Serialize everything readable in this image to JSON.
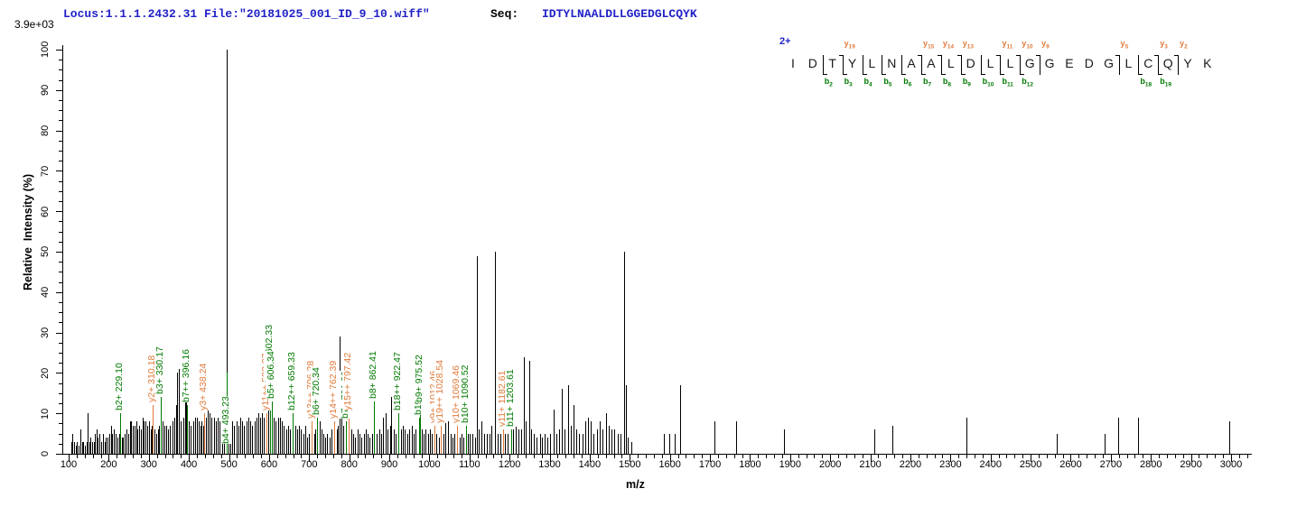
{
  "header": {
    "locus_file": "Locus:1.1.1.2432.31 File:\"20181025_001_ID_9_10.wiff\"",
    "seq_label": "Seq:",
    "sequence": "IDTYLNAALDLLGGEDGLCQYK",
    "intensity_scale": "3.9e+03"
  },
  "precursor_charge": "2+",
  "colors": {
    "header_blue": "#2121c8",
    "b_ion_green": "#007a00",
    "y_ion_orange": "#e07b3c",
    "peak_black": "#000000"
  },
  "axes": {
    "x_label": "m/z",
    "y_label": "Relative  Intensity (%)",
    "x_min": 100,
    "x_max": 3000,
    "x_major_step": 100,
    "x_minor_step": 20,
    "y_min": 0,
    "y_max": 100,
    "y_major_step": 10,
    "y_minor_step": 2.5
  },
  "fragment_map": {
    "residues": [
      "I",
      "D",
      "T",
      "Y",
      "L",
      "N",
      "A",
      "A",
      "L",
      "D",
      "L",
      "L",
      "G",
      "G",
      "E",
      "D",
      "G",
      "L",
      "C",
      "Q",
      "Y",
      "K"
    ],
    "marks": [
      {
        "after": 2,
        "b": "b2"
      },
      {
        "after": 3,
        "b": "b3",
        "y": "y19"
      },
      {
        "after": 4,
        "b": "b4"
      },
      {
        "after": 5,
        "b": "b5"
      },
      {
        "after": 6,
        "b": "b6"
      },
      {
        "after": 7,
        "b": "b7",
        "y": "y15"
      },
      {
        "after": 8,
        "b": "b8",
        "y": "y14"
      },
      {
        "after": 9,
        "b": "b9",
        "y": "y13"
      },
      {
        "after": 10,
        "b": "b10"
      },
      {
        "after": 11,
        "b": "b11",
        "y": "y11"
      },
      {
        "after": 12,
        "b": "b12",
        "y": "y10"
      },
      {
        "after": 13,
        "y": "y9"
      },
      {
        "after": 17,
        "y": "y5"
      },
      {
        "after": 18,
        "b": "b18"
      },
      {
        "after": 19,
        "b": "b19",
        "y": "y3"
      },
      {
        "after": 20,
        "y": "y2"
      }
    ]
  },
  "chart_data": {
    "type": "bar",
    "title": "MS/MS fragmentation spectrum",
    "xlabel": "m/z",
    "ylabel": "Relative Intensity (%)",
    "xlim": [
      100,
      3000
    ],
    "ylim": [
      0,
      100
    ],
    "grid": false,
    "base_peak_intensity": "3.9e+03",
    "labeled_peaks": [
      {
        "label": "b2+ 229.10",
        "ion": "b",
        "mz": 229.1,
        "intensity": 10
      },
      {
        "label": "y2+ 310.18",
        "ion": "y",
        "mz": 310.18,
        "intensity": 12
      },
      {
        "label": "b3+ 330.17",
        "ion": "b",
        "mz": 330.17,
        "intensity": 14
      },
      {
        "label": "b7++ 396.16",
        "ion": "b",
        "mz": 396.16,
        "intensity": 12
      },
      {
        "label": "y3+ 438.24",
        "ion": "y",
        "mz": 438.24,
        "intensity": 10
      },
      {
        "label": "b4+ 493.23",
        "ion": "b",
        "mz": 493.23,
        "intensity": 20,
        "label_bottom_y": 492
      },
      {
        "label": "y11++ 592.27",
        "ion": "y",
        "mz": 592.27,
        "intensity": 10
      },
      {
        "label": "b11++ 602.33",
        "ion": "b",
        "mz": 602.33,
        "intensity": 17
      },
      {
        "label": "b5+ 606.34",
        "ion": "b",
        "mz": 606.34,
        "intensity": 13
      },
      {
        "label": "b12++ 659.33",
        "ion": "b",
        "mz": 659.33,
        "intensity": 10
      },
      {
        "label": "y13++ 706.28",
        "ion": "y",
        "mz": 706.28,
        "intensity": 8
      },
      {
        "label": "b6+ 720.34",
        "ion": "b",
        "mz": 720.34,
        "intensity": 9
      },
      {
        "label": "y14++ 762.39",
        "ion": "y",
        "mz": 762.39,
        "intensity": 8
      },
      {
        "label": "b7+ 791.39",
        "ion": "b",
        "mz": 791.39,
        "intensity": 8
      },
      {
        "label": "y15++ 797.42",
        "ion": "y",
        "mz": 797.42,
        "intensity": 10
      },
      {
        "label": "b8+ 862.41",
        "ion": "b",
        "mz": 862.41,
        "intensity": 13
      },
      {
        "label": "b18++ 922.47",
        "ion": "b",
        "mz": 922.47,
        "intensity": 10
      },
      {
        "label": "b19++ 974.45",
        "ion": "b",
        "mz": 974.45,
        "intensity": 9
      },
      {
        "label": "b9+ 975.52",
        "ion": "b",
        "mz": 975.52,
        "intensity": 12
      },
      {
        "label": "y9+ 1012.46",
        "ion": "y",
        "mz": 1012.46,
        "intensity": 7
      },
      {
        "label": "y19++ 1028.54",
        "ion": "y",
        "mz": 1028.54,
        "intensity": 7
      },
      {
        "label": "y10+ 1069.46",
        "ion": "y",
        "mz": 1069.46,
        "intensity": 7
      },
      {
        "label": "b10+ 1090.52",
        "ion": "b",
        "mz": 1090.52,
        "intensity": 7
      },
      {
        "label": "y11+ 1182.61",
        "ion": "y",
        "mz": 1182.61,
        "intensity": 6
      },
      {
        "label": "b11+ 1203.61",
        "ion": "b",
        "mz": 1203.61,
        "intensity": 6
      }
    ],
    "unlabeled_peaks": [
      [
        107,
        3
      ],
      [
        110,
        5
      ],
      [
        114,
        3
      ],
      [
        118,
        2
      ],
      [
        121,
        3
      ],
      [
        125,
        2
      ],
      [
        129,
        6
      ],
      [
        133,
        3
      ],
      [
        136,
        3
      ],
      [
        141,
        2
      ],
      [
        144,
        3
      ],
      [
        147,
        10
      ],
      [
        151,
        3
      ],
      [
        155,
        4
      ],
      [
        158,
        3
      ],
      [
        162,
        3
      ],
      [
        166,
        5
      ],
      [
        169,
        6
      ],
      [
        173,
        4
      ],
      [
        176,
        5
      ],
      [
        181,
        3
      ],
      [
        185,
        5
      ],
      [
        189,
        3
      ],
      [
        193,
        4
      ],
      [
        197,
        4
      ],
      [
        201,
        5
      ],
      [
        205,
        7
      ],
      [
        209,
        5
      ],
      [
        213,
        6
      ],
      [
        217,
        5
      ],
      [
        221,
        4
      ],
      [
        225,
        5
      ],
      [
        232,
        4
      ],
      [
        236,
        4
      ],
      [
        240,
        5
      ],
      [
        244,
        6
      ],
      [
        248,
        5
      ],
      [
        252,
        8
      ],
      [
        256,
        8
      ],
      [
        260,
        7
      ],
      [
        264,
        7
      ],
      [
        268,
        8
      ],
      [
        272,
        6
      ],
      [
        276,
        7
      ],
      [
        280,
        6
      ],
      [
        284,
        9
      ],
      [
        288,
        8
      ],
      [
        292,
        8
      ],
      [
        296,
        7
      ],
      [
        300,
        8
      ],
      [
        304,
        6
      ],
      [
        308,
        7
      ],
      [
        314,
        6
      ],
      [
        318,
        5
      ],
      [
        322,
        6
      ],
      [
        326,
        7
      ],
      [
        334,
        8
      ],
      [
        338,
        7
      ],
      [
        343,
        7
      ],
      [
        348,
        6
      ],
      [
        353,
        7
      ],
      [
        358,
        8
      ],
      [
        363,
        9
      ],
      [
        368,
        12
      ],
      [
        371,
        20
      ],
      [
        375,
        21
      ],
      [
        380,
        8
      ],
      [
        385,
        9
      ],
      [
        390,
        21
      ],
      [
        393,
        14
      ],
      [
        400,
        8
      ],
      [
        405,
        7
      ],
      [
        410,
        8
      ],
      [
        415,
        9
      ],
      [
        420,
        9
      ],
      [
        424,
        8
      ],
      [
        428,
        7
      ],
      [
        432,
        8
      ],
      [
        436,
        7
      ],
      [
        443,
        9
      ],
      [
        447,
        12
      ],
      [
        452,
        10
      ],
      [
        457,
        9
      ],
      [
        462,
        9
      ],
      [
        467,
        8
      ],
      [
        472,
        9
      ],
      [
        477,
        8
      ],
      [
        482,
        9
      ],
      [
        487,
        9
      ],
      [
        494.5,
        100
      ],
      [
        498,
        10
      ],
      [
        503,
        9
      ],
      [
        508,
        8
      ],
      [
        513,
        7
      ],
      [
        518,
        8
      ],
      [
        523,
        7
      ],
      [
        528,
        9
      ],
      [
        533,
        8
      ],
      [
        538,
        7
      ],
      [
        543,
        8
      ],
      [
        548,
        9
      ],
      [
        553,
        8
      ],
      [
        558,
        7
      ],
      [
        563,
        8
      ],
      [
        568,
        9
      ],
      [
        572,
        10
      ],
      [
        577,
        9
      ],
      [
        582,
        10
      ],
      [
        587,
        9
      ],
      [
        597,
        12
      ],
      [
        612,
        9
      ],
      [
        617,
        8
      ],
      [
        622,
        9
      ],
      [
        627,
        9
      ],
      [
        632,
        8
      ],
      [
        637,
        7
      ],
      [
        642,
        6
      ],
      [
        647,
        7
      ],
      [
        652,
        6
      ],
      [
        665,
        7
      ],
      [
        670,
        6
      ],
      [
        675,
        7
      ],
      [
        680,
        6
      ],
      [
        685,
        5
      ],
      [
        690,
        7
      ],
      [
        695,
        4
      ],
      [
        700,
        5
      ],
      [
        712,
        5
      ],
      [
        716,
        6
      ],
      [
        726,
        8
      ],
      [
        730,
        6
      ],
      [
        735,
        5
      ],
      [
        740,
        4
      ],
      [
        745,
        5
      ],
      [
        750,
        4
      ],
      [
        755,
        6
      ],
      [
        768,
        6
      ],
      [
        772,
        7
      ],
      [
        775,
        29
      ],
      [
        780,
        9
      ],
      [
        785,
        7
      ],
      [
        805,
        6
      ],
      [
        810,
        5
      ],
      [
        815,
        4
      ],
      [
        820,
        6
      ],
      [
        825,
        5
      ],
      [
        830,
        4
      ],
      [
        836,
        5
      ],
      [
        841,
        6
      ],
      [
        846,
        5
      ],
      [
        851,
        4
      ],
      [
        856,
        5
      ],
      [
        868,
        5
      ],
      [
        874,
        6
      ],
      [
        880,
        5
      ],
      [
        885,
        9
      ],
      [
        890,
        10
      ],
      [
        896,
        6
      ],
      [
        901,
        7
      ],
      [
        905,
        14
      ],
      [
        910,
        6
      ],
      [
        916,
        5
      ],
      [
        928,
        6
      ],
      [
        933,
        7
      ],
      [
        939,
        6
      ],
      [
        944,
        5
      ],
      [
        950,
        6
      ],
      [
        956,
        7
      ],
      [
        961,
        5
      ],
      [
        966,
        6
      ],
      [
        981,
        6
      ],
      [
        986,
        5
      ],
      [
        991,
        6
      ],
      [
        996,
        5
      ],
      [
        1001,
        6
      ],
      [
        1006,
        5
      ],
      [
        1018,
        5
      ],
      [
        1023,
        4
      ],
      [
        1034,
        5
      ],
      [
        1040,
        8
      ],
      [
        1046,
        8
      ],
      [
        1052,
        5
      ],
      [
        1058,
        4
      ],
      [
        1063,
        5
      ],
      [
        1075,
        4
      ],
      [
        1080,
        5
      ],
      [
        1085,
        4
      ],
      [
        1096,
        5
      ],
      [
        1101,
        5
      ],
      [
        1107,
        5
      ],
      [
        1113,
        4
      ],
      [
        1118,
        49
      ],
      [
        1124,
        6
      ],
      [
        1130,
        8
      ],
      [
        1136,
        5
      ],
      [
        1143,
        5
      ],
      [
        1149,
        5
      ],
      [
        1155,
        7
      ],
      [
        1163,
        50
      ],
      [
        1170,
        5
      ],
      [
        1176,
        5
      ],
      [
        1189,
        5
      ],
      [
        1195,
        5
      ],
      [
        1209,
        6
      ],
      [
        1215,
        7
      ],
      [
        1221,
        6
      ],
      [
        1228,
        6
      ],
      [
        1235,
        24
      ],
      [
        1241,
        8
      ],
      [
        1248,
        23
      ],
      [
        1254,
        6
      ],
      [
        1261,
        5
      ],
      [
        1268,
        4
      ],
      [
        1275,
        5
      ],
      [
        1281,
        4
      ],
      [
        1288,
        5
      ],
      [
        1295,
        4
      ],
      [
        1302,
        5
      ],
      [
        1310,
        11
      ],
      [
        1317,
        5
      ],
      [
        1324,
        6
      ],
      [
        1330,
        16
      ],
      [
        1337,
        6
      ],
      [
        1345,
        17
      ],
      [
        1352,
        7
      ],
      [
        1360,
        12
      ],
      [
        1367,
        6
      ],
      [
        1374,
        5
      ],
      [
        1381,
        5
      ],
      [
        1388,
        8
      ],
      [
        1395,
        9
      ],
      [
        1402,
        8
      ],
      [
        1410,
        5
      ],
      [
        1418,
        6
      ],
      [
        1425,
        8
      ],
      [
        1432,
        6
      ],
      [
        1440,
        10
      ],
      [
        1447,
        7
      ],
      [
        1455,
        6
      ],
      [
        1462,
        6
      ],
      [
        1470,
        5
      ],
      [
        1477,
        5
      ],
      [
        1485,
        50
      ],
      [
        1491,
        17
      ],
      [
        1495,
        4
      ],
      [
        1503,
        3
      ],
      [
        1585,
        5
      ],
      [
        1598,
        5
      ],
      [
        1612,
        5
      ],
      [
        1625,
        17
      ],
      [
        1712,
        8
      ],
      [
        1765,
        8
      ],
      [
        1885,
        6
      ],
      [
        2110,
        6
      ],
      [
        2155,
        7
      ],
      [
        2340,
        9
      ],
      [
        2565,
        5
      ],
      [
        2685,
        5
      ],
      [
        2718,
        9
      ],
      [
        2768,
        9
      ],
      [
        2995,
        8
      ]
    ]
  }
}
